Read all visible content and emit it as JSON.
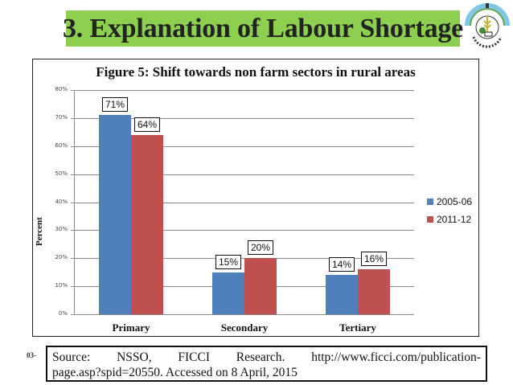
{
  "slide": {
    "title": "3. Explanation of Labour Shortage",
    "logo": "institute-emblem-icon",
    "slide_number": "03-",
    "colors": {
      "banner_green": "#8dcf4f",
      "series_2005_06": "#4f81bd",
      "series_2011_12": "#c0504d"
    }
  },
  "source": {
    "line1_words": [
      "Source:",
      "NSSO,",
      "FICCI",
      "Research.",
      "http://www.ficci.com/publication-"
    ],
    "line2": "page.asp?spid=20550. Accessed on 8 April, 2015"
  },
  "chart_data": {
    "type": "bar",
    "title": "Figure 5: Shift towards non farm sectors in rural areas",
    "xlabel": "",
    "ylabel": "Percent",
    "categories": [
      "Primary",
      "Secondary",
      "Tertiary"
    ],
    "series": [
      {
        "name": "2005-06",
        "values": [
          71,
          15,
          14
        ],
        "labels": [
          "71%",
          "15%",
          "14%"
        ],
        "color": "#4f81bd"
      },
      {
        "name": "2011-12",
        "values": [
          64,
          20,
          16
        ],
        "labels": [
          "64%",
          "20%",
          "16%"
        ],
        "color": "#c0504d"
      }
    ],
    "ylim": [
      0,
      80
    ],
    "yticks": [
      "0%",
      "10%",
      "20%",
      "30%",
      "40%",
      "50%",
      "60%",
      "70%",
      "80%"
    ],
    "grid": true,
    "legend_position": "right"
  }
}
